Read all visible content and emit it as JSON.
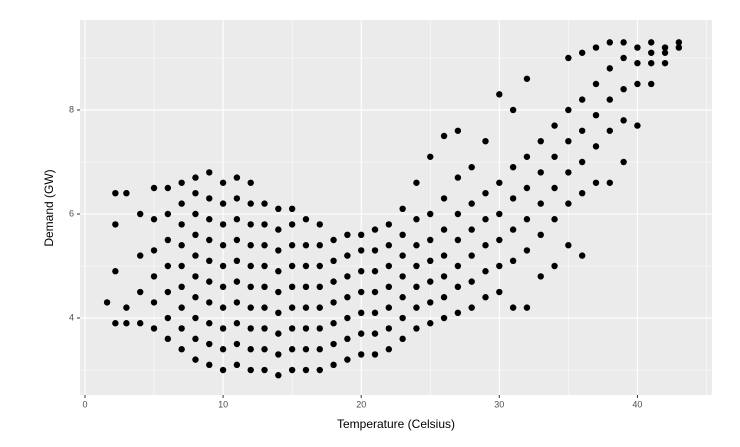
{
  "chart_data": {
    "type": "scatter",
    "x_label": "Temperature (Celsius)",
    "y_label": "Demand (GW)",
    "xlim": [
      -0.36,
      45.4
    ],
    "ylim": [
      2.52,
      9.73
    ],
    "xticks": [
      0,
      10,
      20,
      30,
      40
    ],
    "yticks": [
      4,
      6,
      8
    ],
    "x_minor_grid": [
      5,
      15,
      25,
      35,
      45
    ],
    "y_minor_grid": [
      3,
      5,
      7,
      9
    ],
    "grid": true,
    "series": [
      {
        "color": "#000000",
        "x": [
          1.6,
          2.2,
          2.2,
          2.2,
          2.2,
          3,
          3,
          3,
          4,
          4,
          4,
          4,
          5,
          5,
          5,
          5,
          5,
          5,
          6,
          6,
          6,
          6,
          6,
          6,
          6,
          7,
          7,
          7,
          7,
          7,
          7,
          7,
          7,
          7,
          8,
          8,
          8,
          8,
          8,
          8,
          8,
          8,
          8,
          8,
          9,
          9,
          9,
          9,
          9,
          9,
          9,
          9,
          9,
          9,
          10,
          10,
          10,
          10,
          10,
          10,
          10,
          10,
          10,
          10,
          11,
          11,
          11,
          11,
          11,
          11,
          11,
          11,
          11,
          11,
          12,
          12,
          12,
          12,
          12,
          12,
          12,
          12,
          12,
          12,
          13,
          13,
          13,
          13,
          13,
          13,
          13,
          13,
          13,
          14,
          14,
          14,
          14,
          14,
          14,
          14,
          14,
          14,
          15,
          15,
          15,
          15,
          15,
          15,
          15,
          15,
          15,
          16,
          16,
          16,
          16,
          16,
          16,
          16,
          16,
          17,
          17,
          17,
          17,
          17,
          17,
          17,
          17,
          18,
          18,
          18,
          18,
          18,
          18,
          18,
          19,
          19,
          19,
          19,
          19,
          19,
          19,
          20,
          20,
          20,
          20,
          20,
          20,
          20,
          21,
          21,
          21,
          21,
          21,
          21,
          21,
          22,
          22,
          22,
          22,
          22,
          22,
          22,
          23,
          23,
          23,
          23,
          23,
          23,
          23,
          24,
          24,
          24,
          24,
          24,
          24,
          24,
          25,
          25,
          25,
          25,
          25,
          25,
          25,
          26,
          26,
          26,
          26,
          26,
          26,
          26,
          27,
          27,
          27,
          27,
          27,
          27,
          27,
          28,
          28,
          28,
          28,
          28,
          28,
          29,
          29,
          29,
          29,
          29,
          29,
          30,
          30,
          30,
          30,
          30,
          30,
          31,
          31,
          31,
          31,
          31,
          31,
          32,
          32,
          32,
          32,
          32,
          32,
          33,
          33,
          33,
          33,
          33,
          34,
          34,
          34,
          34,
          34,
          35,
          35,
          35,
          35,
          35,
          35,
          36,
          36,
          36,
          36,
          36,
          36,
          37,
          37,
          37,
          37,
          37,
          38,
          38,
          38,
          38,
          38,
          39,
          39,
          39,
          39,
          39,
          40,
          40,
          40,
          40,
          41,
          41,
          41,
          41,
          42,
          42,
          42,
          43,
          43
        ],
        "values": [
          4.3,
          3.9,
          4.9,
          5.8,
          6.4,
          3.9,
          4.2,
          6.4,
          3.9,
          4.5,
          5.2,
          6.0,
          3.8,
          4.3,
          4.8,
          5.3,
          5.9,
          6.5,
          3.6,
          4.0,
          4.5,
          5.0,
          5.5,
          6.0,
          6.5,
          3.4,
          3.8,
          4.2,
          4.6,
          5.0,
          5.4,
          5.8,
          6.2,
          6.6,
          3.2,
          3.6,
          4.0,
          4.4,
          4.8,
          5.2,
          5.6,
          6.0,
          6.4,
          6.7,
          3.1,
          3.5,
          3.9,
          4.3,
          4.7,
          5.1,
          5.5,
          5.9,
          6.3,
          6.8,
          3.0,
          3.4,
          3.8,
          4.2,
          4.6,
          5.0,
          5.4,
          5.8,
          6.2,
          6.6,
          3.1,
          3.5,
          3.9,
          4.3,
          4.7,
          5.1,
          5.5,
          5.9,
          6.3,
          6.7,
          3.0,
          3.4,
          3.8,
          4.2,
          4.6,
          5.0,
          5.4,
          5.8,
          6.2,
          6.6,
          3.0,
          3.4,
          3.8,
          4.2,
          4.6,
          5.0,
          5.4,
          5.8,
          6.2,
          2.9,
          3.3,
          3.7,
          4.1,
          4.5,
          4.9,
          5.3,
          5.7,
          6.1,
          3.0,
          3.4,
          3.8,
          4.2,
          4.6,
          5.0,
          5.4,
          5.8,
          6.1,
          3.0,
          3.4,
          3.8,
          4.2,
          4.6,
          5.0,
          5.4,
          5.9,
          3.0,
          3.4,
          3.8,
          4.2,
          4.6,
          5.0,
          5.4,
          5.8,
          3.1,
          3.5,
          3.9,
          4.3,
          4.7,
          5.1,
          5.5,
          3.2,
          3.6,
          4.0,
          4.4,
          4.8,
          5.2,
          5.6,
          3.3,
          3.7,
          4.1,
          4.5,
          4.9,
          5.3,
          5.6,
          3.3,
          3.7,
          4.1,
          4.5,
          4.9,
          5.3,
          5.7,
          3.4,
          3.8,
          4.2,
          4.6,
          5.0,
          5.4,
          5.8,
          3.6,
          4.0,
          4.4,
          4.8,
          5.2,
          5.6,
          6.1,
          3.8,
          4.2,
          4.6,
          5.0,
          5.4,
          5.9,
          6.6,
          3.9,
          4.3,
          4.7,
          5.1,
          5.5,
          6.0,
          7.1,
          4.0,
          4.4,
          4.8,
          5.2,
          5.7,
          6.3,
          7.5,
          4.1,
          4.6,
          5.0,
          5.5,
          6.0,
          6.7,
          7.6,
          4.2,
          4.7,
          5.2,
          5.7,
          6.2,
          6.9,
          4.4,
          4.9,
          5.4,
          5.9,
          6.4,
          7.4,
          4.5,
          5.0,
          5.5,
          6.0,
          6.6,
          8.3,
          4.2,
          5.1,
          5.7,
          6.3,
          6.9,
          8.0,
          4.2,
          5.3,
          5.9,
          6.5,
          7.1,
          8.6,
          4.8,
          5.6,
          6.2,
          6.8,
          7.4,
          5.0,
          5.9,
          6.5,
          7.1,
          7.7,
          5.4,
          6.2,
          6.8,
          7.4,
          8.0,
          9.0,
          5.2,
          6.4,
          7.0,
          7.6,
          8.2,
          9.1,
          6.6,
          7.3,
          7.9,
          8.5,
          9.2,
          6.6,
          7.6,
          8.2,
          8.8,
          9.3,
          7.0,
          7.8,
          8.4,
          9.0,
          9.3,
          7.7,
          8.5,
          8.9,
          9.2,
          8.5,
          8.9,
          9.1,
          9.3,
          8.9,
          9.1,
          9.2,
          9.2,
          9.3
        ]
      }
    ]
  }
}
